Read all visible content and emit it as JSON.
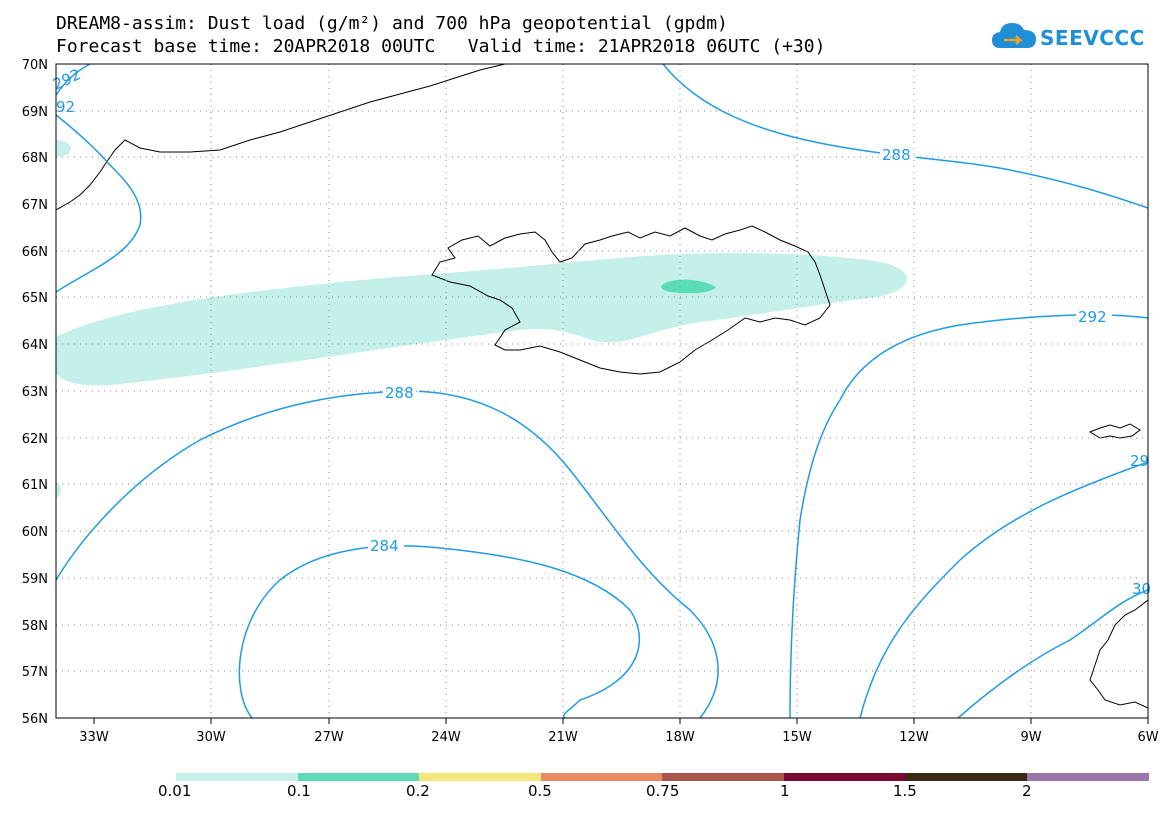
{
  "header": {
    "title_line1": "DREAM8-assim: Dust load (g/m²) and 700 hPa geopotential (gpdm)",
    "title_line2": "Forecast base time: 20APR2018 00UTC   Valid time: 21APR2018 06UTC (+30)"
  },
  "logo": {
    "text": "SEEVCCC",
    "icon": "cloud-icon",
    "color": "#1f8fd8"
  },
  "map": {
    "lat_labels": [
      "70N",
      "69N",
      "68N",
      "67N",
      "66N",
      "65N",
      "64N",
      "63N",
      "62N",
      "61N",
      "60N",
      "59N",
      "58N",
      "57N",
      "56N"
    ],
    "lon_labels": [
      "33W",
      "30W",
      "27W",
      "24W",
      "21W",
      "18W",
      "15W",
      "12W",
      "9W",
      "6W"
    ],
    "contour_color": "#1e9be6",
    "contour_labels": {
      "c288_north": "288",
      "c292_east": "292",
      "c288_south": "288",
      "c284": "284",
      "c292_nw": "292",
      "c292_nw2": "92",
      "c29_east": "29",
      "c30_east": "30"
    }
  },
  "legend": {
    "labels": [
      "0.01",
      "0.1",
      "0.2",
      "0.5",
      "0.75",
      "1",
      "1.5",
      "2"
    ],
    "colors": [
      "#c4f0e9",
      "#5cdcb4",
      "#f5e67a",
      "#e68a68",
      "#a8554a",
      "#7a0a32",
      "#3a2812",
      "#9b74a8"
    ]
  }
}
